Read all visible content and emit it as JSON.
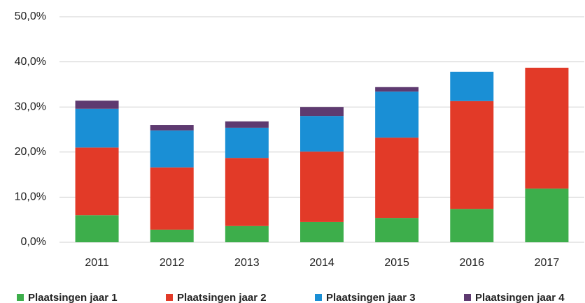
{
  "chart_data": {
    "type": "stacked_bar",
    "categories": [
      "2011",
      "2012",
      "2013",
      "2014",
      "2015",
      "2016",
      "2017"
    ],
    "series": [
      {
        "name": "Plaatsingen jaar 1",
        "color": "#3dae4b",
        "values": [
          6.0,
          2.8,
          3.6,
          4.5,
          5.4,
          7.4,
          11.9
        ]
      },
      {
        "name": "Plaatsingen jaar 2",
        "color": "#e23a28",
        "values": [
          15.0,
          13.8,
          15.1,
          15.6,
          17.8,
          23.9,
          26.8
        ]
      },
      {
        "name": "Plaatsingen jaar 3",
        "color": "#1a8fd5",
        "values": [
          8.6,
          8.2,
          6.7,
          7.9,
          10.2,
          6.5,
          0
        ]
      },
      {
        "name": "Plaatsingen jaar 4",
        "color": "#5e3a70",
        "values": [
          1.8,
          1.2,
          1.4,
          2.0,
          1.0,
          0,
          0
        ]
      }
    ],
    "ylim": [
      0,
      50
    ],
    "yticks": [
      {
        "value": 0,
        "label": "0,0%"
      },
      {
        "value": 10,
        "label": "10,0%"
      },
      {
        "value": 20,
        "label": "20,0%"
      },
      {
        "value": 30,
        "label": "30,0%"
      },
      {
        "value": 40,
        "label": "40,0%"
      },
      {
        "value": 50,
        "label": "50,0%"
      }
    ],
    "grid": true
  }
}
